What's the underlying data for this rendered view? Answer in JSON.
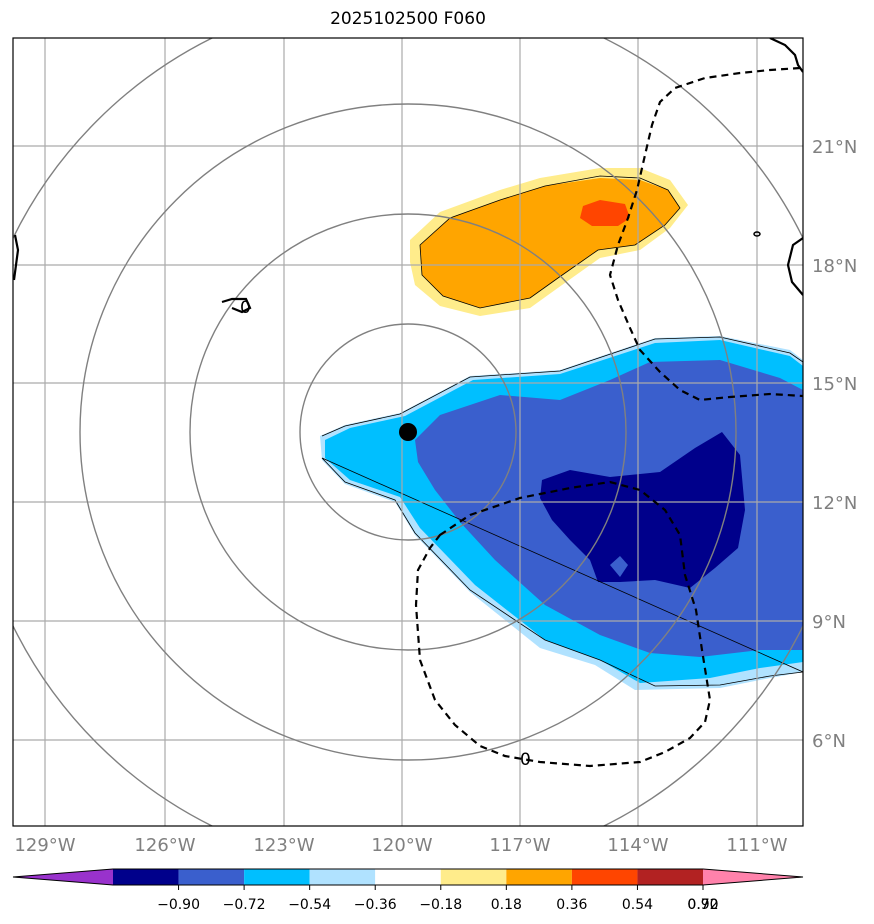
{
  "map": {
    "title": "2025102500 F060",
    "lat_labels": [
      "21°N",
      "18°N",
      "15°N",
      "12°N",
      "9°N",
      "6°N"
    ],
    "lon_labels": [
      "129°W",
      "126°W",
      "123°W",
      "120°W",
      "117°W",
      "114°W",
      "111°W"
    ],
    "colorbar": {
      "tick_labels": [
        "−0.90",
        "−0.72",
        "−0.54",
        "−0.36",
        "−0.18",
        "0.18",
        "0.36",
        "0.54",
        "0.72",
        "0.90"
      ],
      "colors": [
        "#9932CC",
        "#00008B",
        "#3A5FCD",
        "#00BFFF",
        "#B0E2FF",
        "#FFFFFF",
        "#FFEC8B",
        "#FFA500",
        "#FF4500",
        "#B22222",
        "#FF82AB"
      ]
    },
    "contour_labels": [
      "0",
      "0"
    ],
    "storm_center_marker": "black-dot"
  }
}
